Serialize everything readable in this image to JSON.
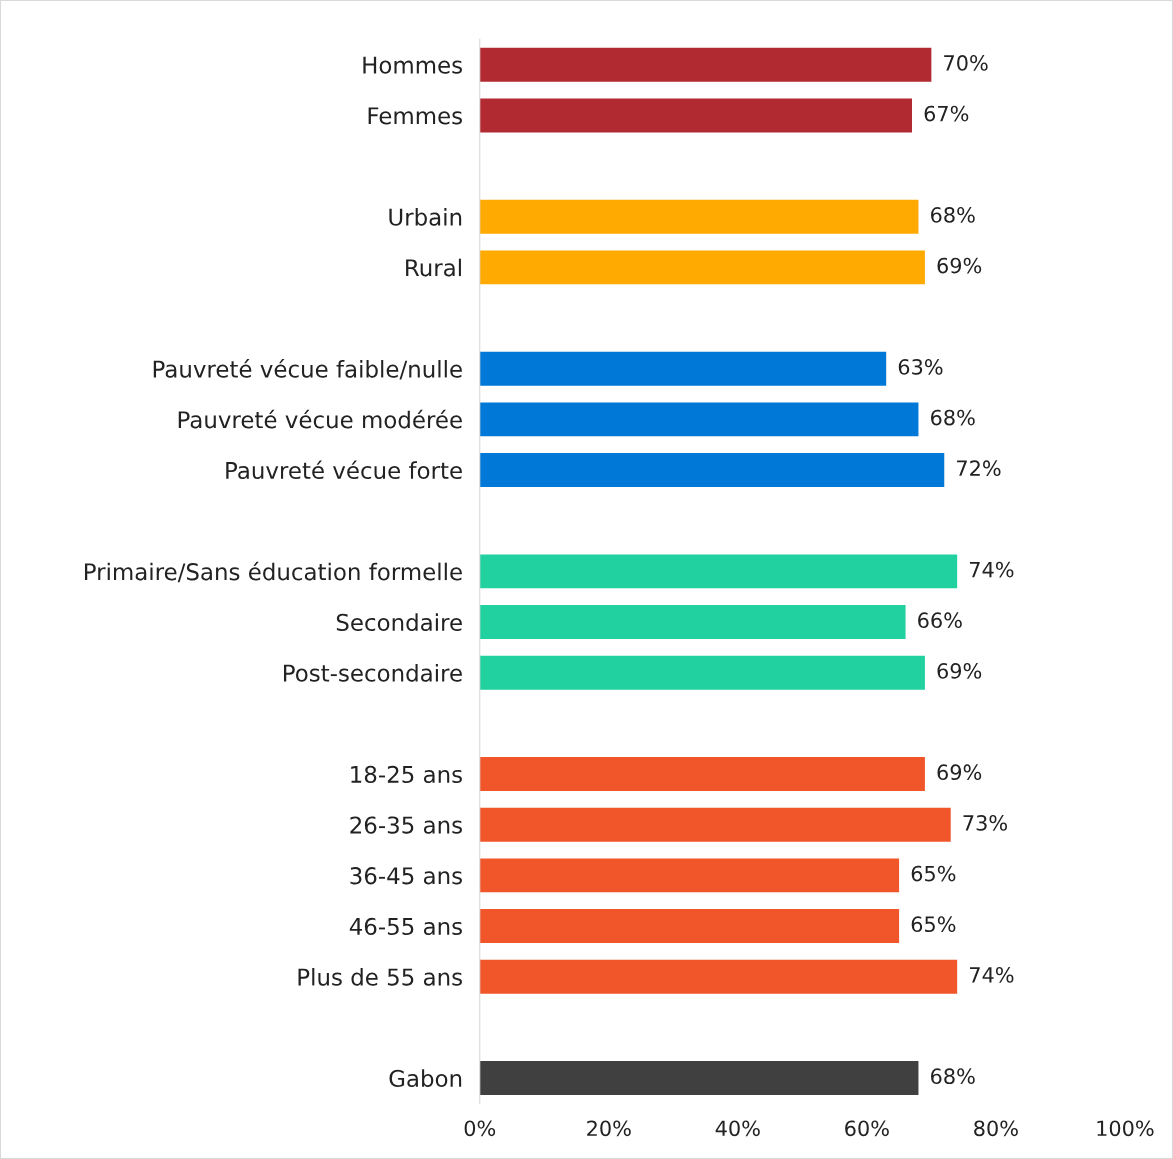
{
  "chart_data": {
    "type": "bar",
    "orientation": "horizontal",
    "categories": [
      "Hommes",
      "Femmes",
      null,
      "Urbain",
      "Rural",
      null,
      "Pauvreté vécue faible/nulle",
      "Pauvreté vécue modérée",
      "Pauvreté vécue forte",
      null,
      "Primaire/Sans éducation formelle",
      "Secondaire",
      "Post-secondaire",
      null,
      "18-25 ans",
      "26-35 ans",
      "36-45 ans",
      "46-55 ans",
      "Plus de 55 ans",
      null,
      "Gabon"
    ],
    "values": [
      70,
      67,
      null,
      68,
      69,
      null,
      63,
      68,
      72,
      null,
      74,
      66,
      69,
      null,
      69,
      73,
      65,
      65,
      74,
      null,
      68
    ],
    "colors": [
      "#b22a31",
      "#b22a31",
      null,
      "#ffaa00",
      "#ffaa00",
      null,
      "#0078d7",
      "#0078d7",
      "#0078d7",
      null,
      "#21d19f",
      "#21d19f",
      "#21d19f",
      null,
      "#f0562a",
      "#f0562a",
      "#f0562a",
      "#f0562a",
      "#f0562a",
      null,
      "#404040"
    ],
    "value_labels": [
      "70%",
      "67%",
      null,
      "68%",
      "69%",
      null,
      "63%",
      "68%",
      "72%",
      null,
      "74%",
      "66%",
      "69%",
      null,
      "69%",
      "73%",
      "65%",
      "65%",
      "74%",
      null,
      "68%"
    ],
    "xlim": [
      0,
      100
    ],
    "xticks": [
      {
        "value": 0,
        "label": "0%"
      },
      {
        "value": 20,
        "label": "20%"
      },
      {
        "value": 40,
        "label": "40%"
      },
      {
        "value": 60,
        "label": "60%"
      },
      {
        "value": 80,
        "label": "80%"
      },
      {
        "value": 100,
        "label": "100%"
      }
    ],
    "grid": false,
    "legend": false
  }
}
